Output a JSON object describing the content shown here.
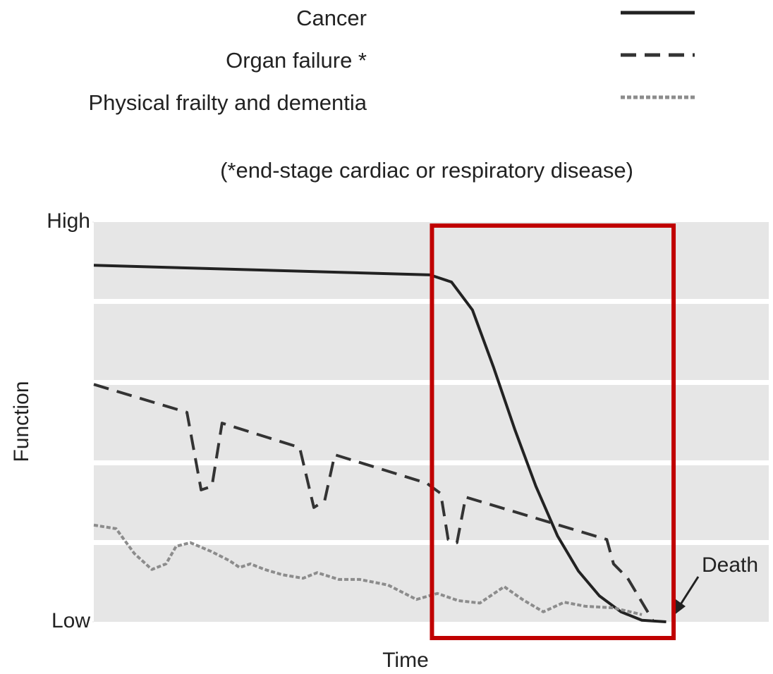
{
  "chart_data": {
    "type": "line",
    "legend_note": "(*end-stage cardiac or respiratory disease)",
    "xlabel": "Time",
    "ylabel": "Function",
    "xlim": [
      0,
      100
    ],
    "ylim": [
      0,
      100
    ],
    "yticks": [
      {
        "value": 0,
        "label": "Low"
      },
      {
        "value": 100,
        "label": "High"
      }
    ],
    "series": [
      {
        "name": "Cancer",
        "color": "#222222",
        "dash": "solid",
        "x": [
          0,
          49.8,
          53.0,
          56.1,
          59.2,
          62.4,
          65.5,
          68.7,
          71.8,
          74.9,
          78.1,
          81.2,
          84.8
        ],
        "values": [
          89.2,
          86.8,
          85.0,
          78.0,
          63.8,
          48.0,
          33.9,
          21.5,
          12.7,
          6.5,
          2.5,
          0.4,
          0
        ]
      },
      {
        "name": "Organ failure *",
        "color": "#333333",
        "dash": "dashed",
        "x": [
          0,
          13.8,
          15.9,
          17.5,
          19.0,
          30.5,
          32.6,
          34.2,
          35.7,
          49.3,
          51.4,
          52.5,
          53.8,
          55.1,
          76.0,
          77.0,
          79.1,
          82.8
        ],
        "values": [
          59.4,
          52.4,
          33.0,
          33.9,
          49.7,
          43.6,
          28.6,
          30.3,
          41.8,
          34.7,
          32.1,
          20.6,
          19.8,
          31.2,
          20.6,
          14.5,
          10.9,
          0.4
        ]
      },
      {
        "name": "Physical frailty and dementia",
        "color": "#8c8c8c",
        "dash": "dotted",
        "x": [
          0,
          3.3,
          6.0,
          8.6,
          10.7,
          12.2,
          14.3,
          17.4,
          20.1,
          21.6,
          23.2,
          25.3,
          27.9,
          31.0,
          33.1,
          36.3,
          39.4,
          43.6,
          47.8,
          50.9,
          54.0,
          57.2,
          60.8,
          63.5,
          66.6,
          69.7,
          72.8,
          77.0,
          81.2
        ],
        "values": [
          24.2,
          23.3,
          17.1,
          13.1,
          14.5,
          18.9,
          19.8,
          17.6,
          15.3,
          13.6,
          14.5,
          13.1,
          11.8,
          10.9,
          12.3,
          10.6,
          10.6,
          9.2,
          5.6,
          7.1,
          5.3,
          4.7,
          8.8,
          5.6,
          2.5,
          4.9,
          3.9,
          3.5,
          1.8
        ]
      }
    ],
    "annotation": {
      "text": "Death"
    },
    "highlight": {
      "xlim": [
        50.1,
        85.9
      ],
      "color": "#c00000"
    }
  }
}
